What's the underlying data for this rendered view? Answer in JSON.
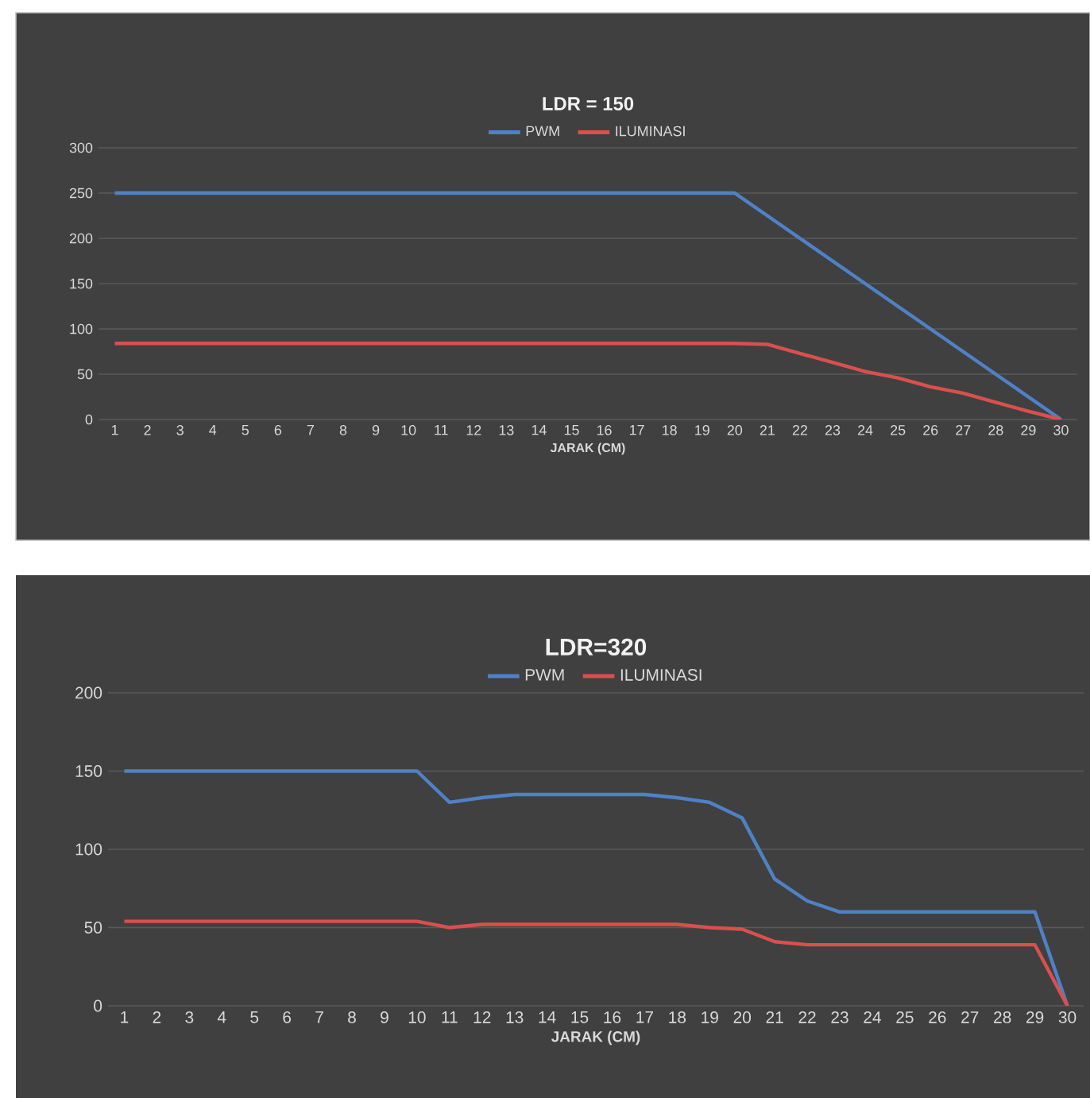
{
  "chart_data": [
    {
      "type": "line",
      "title": "LDR = 150",
      "xlabel": "JARAK (CM)",
      "categories": [
        "1",
        "2",
        "3",
        "4",
        "5",
        "6",
        "7",
        "8",
        "9",
        "10",
        "11",
        "12",
        "13",
        "14",
        "15",
        "16",
        "17",
        "18",
        "19",
        "20",
        "21",
        "22",
        "23",
        "24",
        "25",
        "26",
        "27",
        "28",
        "29",
        "30"
      ],
      "ylim": [
        0,
        300
      ],
      "yticks": [
        0,
        50,
        100,
        150,
        200,
        250,
        300
      ],
      "grid": "y",
      "legend": "top",
      "series": [
        {
          "name": "PWM",
          "color": "#4f81c7",
          "values": [
            250,
            250,
            250,
            250,
            250,
            250,
            250,
            250,
            250,
            250,
            250,
            250,
            250,
            250,
            250,
            250,
            250,
            250,
            250,
            250,
            225,
            200,
            175,
            150,
            125,
            100,
            75,
            50,
            25,
            0
          ]
        },
        {
          "name": "ILUMINASI",
          "color": "#d9504c",
          "values": [
            84,
            84,
            84,
            84,
            84,
            84,
            84,
            84,
            84,
            84,
            84,
            84,
            84,
            84,
            84,
            84,
            84,
            84,
            84,
            84,
            83,
            73,
            63,
            53,
            46,
            36,
            29,
            19,
            9,
            0
          ]
        }
      ]
    },
    {
      "type": "line",
      "title": "LDR=320",
      "xlabel": "JARAK (CM)",
      "categories": [
        "1",
        "2",
        "3",
        "4",
        "5",
        "6",
        "7",
        "8",
        "9",
        "10",
        "11",
        "12",
        "13",
        "14",
        "15",
        "16",
        "17",
        "18",
        "19",
        "20",
        "21",
        "22",
        "23",
        "24",
        "25",
        "26",
        "27",
        "28",
        "29",
        "30"
      ],
      "ylim": [
        0,
        200
      ],
      "yticks": [
        0,
        50,
        100,
        150,
        200
      ],
      "grid": "y",
      "legend": "top",
      "series": [
        {
          "name": "PWM",
          "color": "#4f81c7",
          "values": [
            150,
            150,
            150,
            150,
            150,
            150,
            150,
            150,
            150,
            150,
            130,
            133,
            135,
            135,
            135,
            135,
            135,
            133,
            130,
            120,
            81,
            67,
            60,
            60,
            60,
            60,
            60,
            60,
            60,
            0
          ]
        },
        {
          "name": "ILUMINASI",
          "color": "#d9504c",
          "values": [
            54,
            54,
            54,
            54,
            54,
            54,
            54,
            54,
            54,
            54,
            50,
            52,
            52,
            52,
            52,
            52,
            52,
            52,
            50,
            49,
            41,
            39,
            39,
            39,
            39,
            39,
            39,
            39,
            39,
            0
          ]
        }
      ]
    }
  ]
}
